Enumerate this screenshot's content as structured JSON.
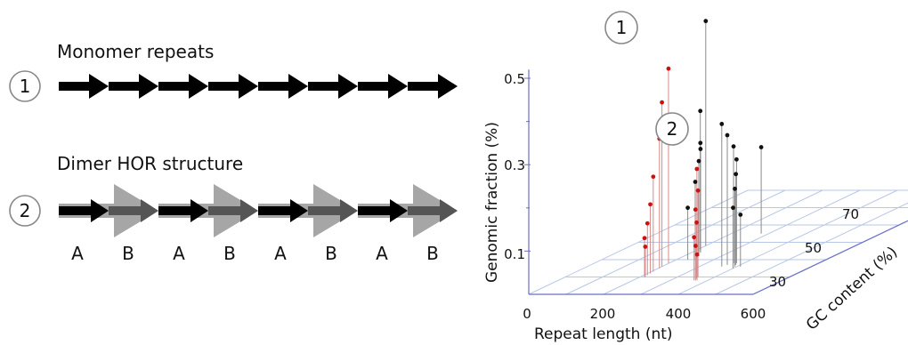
{
  "left_panel": {
    "row1": {
      "number": "1",
      "title": "Monomer repeats",
      "arrow_count": 8
    },
    "row2": {
      "number": "2",
      "title": "Dimer HOR structure",
      "unit_count": 4,
      "letters": [
        "A",
        "B",
        "A",
        "B",
        "A",
        "B",
        "A",
        "B"
      ]
    }
  },
  "chart": {
    "callouts": [
      "1",
      "2"
    ],
    "xlabel": "Repeat length (nt)",
    "ylabel": "Genomic fraction (%)",
    "zlabel": "GC content (%)",
    "x_ticks": [
      "0",
      "200",
      "400",
      "600"
    ],
    "y_ticks": [
      "0.1",
      "0.3",
      "0.5"
    ],
    "z_ticks": [
      "30",
      "50",
      "70"
    ]
  },
  "chart_data": {
    "type": "scatter",
    "xlabel": "Repeat length (nt)",
    "ylabel": "Genomic fraction (%)",
    "zlabel": "GC content (%)",
    "xlim": [
      0,
      600
    ],
    "ylim": [
      0,
      0.5
    ],
    "zlim": [
      20,
      80
    ],
    "series": [
      {
        "color": "#111111",
        "points": [
          [
            200,
            0.52,
            48
          ],
          [
            205,
            0.32,
            46
          ],
          [
            215,
            0.25,
            45
          ],
          [
            225,
            0.24,
            44
          ],
          [
            240,
            0.22,
            42
          ],
          [
            250,
            0.18,
            40
          ],
          [
            280,
            0.2,
            55
          ],
          [
            230,
            0.12,
            40
          ],
          [
            360,
            0.33,
            36
          ],
          [
            365,
            0.3,
            37
          ],
          [
            372,
            0.27,
            38
          ],
          [
            380,
            0.24,
            38
          ],
          [
            388,
            0.21,
            37
          ],
          [
            395,
            0.18,
            36
          ],
          [
            400,
            0.14,
            35
          ],
          [
            410,
            0.12,
            36
          ],
          [
            560,
            0.16,
            75
          ],
          [
            555,
            0.13,
            70
          ]
        ]
      },
      {
        "color": "#cc1111",
        "points": [
          [
            198,
            0.45,
            38
          ],
          [
            200,
            0.38,
            36
          ],
          [
            203,
            0.3,
            35
          ],
          [
            206,
            0.22,
            33
          ],
          [
            208,
            0.16,
            32
          ],
          [
            210,
            0.12,
            31
          ],
          [
            212,
            0.09,
            30
          ],
          [
            214,
            0.07,
            30
          ],
          [
            352,
            0.25,
            30
          ],
          [
            355,
            0.2,
            30
          ],
          [
            358,
            0.16,
            29
          ],
          [
            361,
            0.13,
            29
          ],
          [
            364,
            0.1,
            28
          ],
          [
            368,
            0.08,
            28
          ],
          [
            372,
            0.06,
            28
          ]
        ]
      }
    ]
  }
}
